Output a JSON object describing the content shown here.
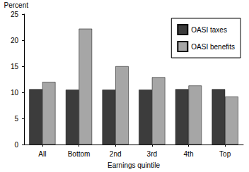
{
  "chart_data": {
    "type": "bar",
    "categories": [
      "All",
      "Bottom",
      "2nd",
      "3rd",
      "4th",
      "Top"
    ],
    "series": [
      {
        "name": "OASI taxes",
        "color": "#3c3c3c",
        "values": [
          10.6,
          10.5,
          10.5,
          10.5,
          10.6,
          10.6
        ]
      },
      {
        "name": "OASI benefits",
        "color": "#a6a6a6",
        "values": [
          12.0,
          22.2,
          15.0,
          12.9,
          11.3,
          9.2
        ]
      }
    ],
    "y_label": "Percent",
    "x_label": "Earnings quintile",
    "ylim": [
      0,
      25
    ],
    "yticks": [
      0,
      5,
      10,
      15,
      20,
      25
    ],
    "grid": false,
    "legend": "top-right"
  }
}
